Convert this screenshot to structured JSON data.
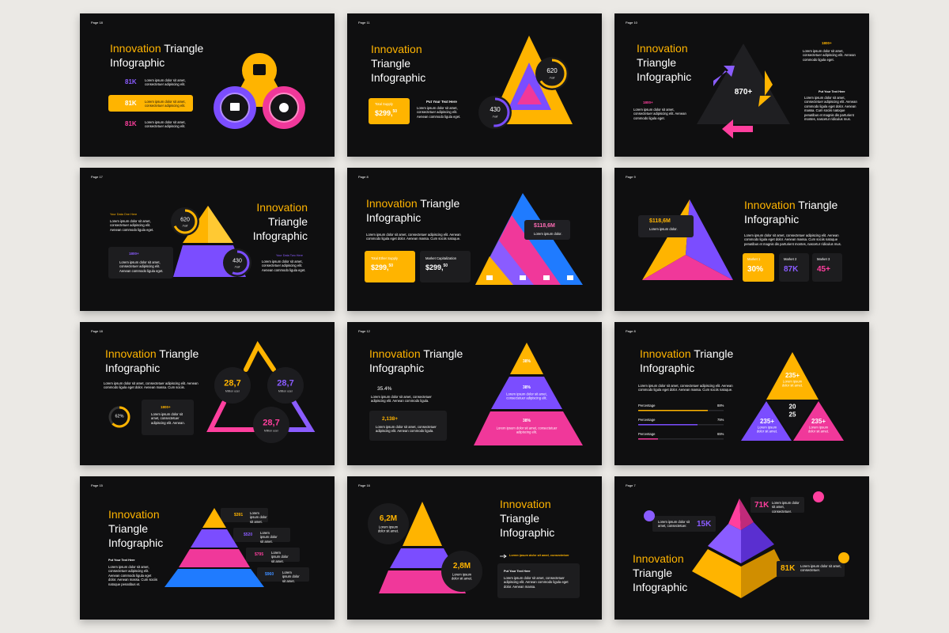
{
  "slides": [
    {
      "page": "Page 18",
      "title_accent": "Innovation",
      "title_rest": "Triangle Infographic",
      "items": [
        {
          "value": "81K",
          "text": "Lorem ipsum dolor sit amet, consectetuer adipiscing elit."
        },
        {
          "value": "81K",
          "text": "Lorem ipsum dolor sit amet, consectetuer adipiscing elit."
        },
        {
          "value": "81K",
          "text": "Lorem ipsum dolor sit amet, consectetuer adipiscing elit."
        }
      ]
    },
    {
      "page": "Page 11",
      "title_accent": "Innovation",
      "title_rest": "Triangle Infographic",
      "box_label": "Total Supply",
      "box_value": "$299,",
      "box_sup": "50",
      "heading": "Put Your Text Here",
      "text": "Lorem ipsum dolor sit amet, consectetuer adipiscing elit. Aenean commodo ligula eget.",
      "circles": [
        {
          "value": "620",
          "unit": "/half"
        },
        {
          "value": "430",
          "unit": "/half"
        }
      ]
    },
    {
      "page": "Page 10",
      "title_accent": "Innovation",
      "title_rest": "Triangle Infographic",
      "center": "870+",
      "stats": [
        {
          "value": "1800+",
          "text": "Lorem ipsum dolor sit amet, consectetuer adipiscing elit. Aenean commodo ligula eget."
        },
        {
          "value": "1800+",
          "text": "Lorem ipsum dolor sit amet, consectetuer adipiscing elit. Aenean commodo ligula eget."
        }
      ],
      "heading": "Put Your Text Here",
      "text": "Lorem ipsum dolor sit amet, consectetuer adipiscing elit. Aenean commodo ligula eget dolor. Aenean massa. Cum sociis natoque penatibus et magnis dis parturient montes, nascetur ridiculus mus."
    },
    {
      "page": "Page 17",
      "title_accent": "Innovation",
      "title_rest": "Triangle Infographic",
      "data_one": {
        "heading": "Your Data One Here",
        "text": "Lorem ipsum dolor sit amet, consectetuer adipiscing elit. Aenean commodo ligula eget."
      },
      "stat": {
        "value": "1800+",
        "text": "Lorem ipsum dolor sit amet, consectetuer adipiscing elit. Aenean commodo ligula eget."
      },
      "data_two": {
        "heading": "Your Data Two Here",
        "text": "Lorem ipsum dolor sit amet, consectetuer adipiscing elit. Aenean commodo ligula eget."
      },
      "circles": [
        {
          "value": "620",
          "unit": "/half"
        },
        {
          "value": "430",
          "unit": "/half"
        }
      ]
    },
    {
      "page": "Page 8",
      "title_accent": "Innovation",
      "title_rest": "Triangle Infographic",
      "text": "Lorem ipsum dolor sit amet, consectetuer adipiscing elit. Aenean commodo ligula eget dolor. Aenean massa. Cum sociis natoque.",
      "boxes": [
        {
          "label": "Total Ether Supply",
          "value": "$299,",
          "sup": "50"
        },
        {
          "label": "Market Capitalization",
          "value": "$299,",
          "sup": "50"
        }
      ],
      "callout": {
        "value": "$118,6M",
        "text": "Lorem ipsum dolor."
      }
    },
    {
      "page": "Page 9",
      "title_accent": "Innovation",
      "title_rest": "Triangle Infographic",
      "callout": {
        "value": "$118,6M",
        "text": "Lorem ipsum dolor."
      },
      "text": "Lorem ipsum dolor sit amet, consectetuer adipiscing elit. Aenean commodo ligula eget dolor. Aenean massa. Cum sociis natoque penatibus et magnis dis parturient montes, nascetur ridiculus mus.",
      "markets": [
        {
          "label": "Market 1",
          "value": "30%"
        },
        {
          "label": "Market 2",
          "value": "87K"
        },
        {
          "label": "Market 3",
          "value": "45+"
        }
      ]
    },
    {
      "page": "Page 18",
      "title_accent": "Innovation",
      "title_rest": "Triangle Infographic",
      "text": "Lorem ipsum dolor sit amet, consectetuer adipiscing elit. Aenean commodo ligula eget dolor. Aenean massa. Cum sociis.",
      "gauge": "62%",
      "stat": {
        "value": "1800+",
        "text": "Lorem ipsum dolor sit amet, consectetuer adipiscing elit. Aenean."
      },
      "circles": [
        {
          "value": "28,7",
          "unit": "Million user"
        },
        {
          "value": "28,7",
          "unit": "Million user"
        },
        {
          "value": "28,7",
          "unit": "Million user"
        }
      ]
    },
    {
      "page": "Page 12",
      "title_accent": "Innovation",
      "title_rest": "Triangle Infographic",
      "stats": [
        {
          "value": "35.4%",
          "text": "Lorem ipsum dolor sit amet, consectetuer adipiscing elit. Aenean commodo ligula."
        },
        {
          "value": "2,138+",
          "text": "Lorem ipsum dolor sit amet, consectetuer adipiscing elit. Aenean commodo ligula."
        }
      ],
      "levels": [
        {
          "value": "38%"
        },
        {
          "value": "38%",
          "text": "Lorem ipsum dolor sit amet, consectetuer adipiscing elit."
        },
        {
          "value": "38%",
          "text": "Lorem ipsum dolor sit amet, consectetuer adipiscing elit."
        }
      ]
    },
    {
      "page": "Page 8",
      "title_accent": "Innovation",
      "title_rest": "Triangle Infographic",
      "text": "Lorem ipsum dolor sit amet, consectetuer adipiscing elit. Aenean commodo ligula eget dolor. Aenean massa. Cum sociis natoque.",
      "bars": [
        {
          "label": "Percentage",
          "value": "88%"
        },
        {
          "label": "Percentage",
          "value": "75%"
        },
        {
          "label": "Percentage",
          "value": "65%"
        }
      ],
      "segments": [
        {
          "value": "235+",
          "text": "Lorem ipsum dolor sit amet."
        },
        {
          "value": "235+",
          "text": "Lorem ipsum dolor sit amet."
        },
        {
          "value": "235+",
          "text": "Lorem ipsum dolor sit amet."
        }
      ],
      "center": "20 25"
    },
    {
      "page": "Page 15",
      "title_accent": "Innovation",
      "title_rest": "Triangle Infographic",
      "heading": "Put Your Text Here",
      "text": "Lorem ipsum dolor sit amet, consectetuer adipiscing elit. Aenean commodo ligula eget dolor. Aenean massa. Cum sociis natoque penatibus et.",
      "levels": [
        {
          "value": "$391",
          "text": "Lorem ipsum dolor sit amet."
        },
        {
          "value": "$520",
          "text": "Lorem ipsum dolor sit amet."
        },
        {
          "value": "$795",
          "text": "Lorem ipsum dolor sit amet."
        },
        {
          "value": "$960",
          "text": "Lorem ipsum dolor sit amet."
        }
      ]
    },
    {
      "page": "Page 16",
      "title_accent": "Innovation",
      "title_rest": "Triangle Infographic",
      "circles": [
        {
          "value": "6,2M",
          "text": "Lorem ipsum dolor sit amet."
        },
        {
          "value": "2,8M",
          "text": "Lorem ipsum dolor sit amet."
        }
      ],
      "arrow_text": "Lorem ipsum dolor sit amet, consectetuer",
      "heading": "Put Your Text Here",
      "text": "Lorem ipsum dolor sit amet, consectetuer adipiscing elit. Aenean commodo ligula eget dolor. Aenean massa."
    },
    {
      "page": "Page 7",
      "title_accent": "Innovation",
      "title_rest": "Triangle Infographic",
      "callouts": [
        {
          "value": "71K",
          "text": "Lorem ipsum dolor sit amet, consectetuer."
        },
        {
          "value": "15K",
          "text": "Lorem ipsum dolor sit amet, consectetuer."
        },
        {
          "value": "81K",
          "text": "Lorem ipsum dolor sit amet, consectetuer."
        }
      ]
    }
  ]
}
